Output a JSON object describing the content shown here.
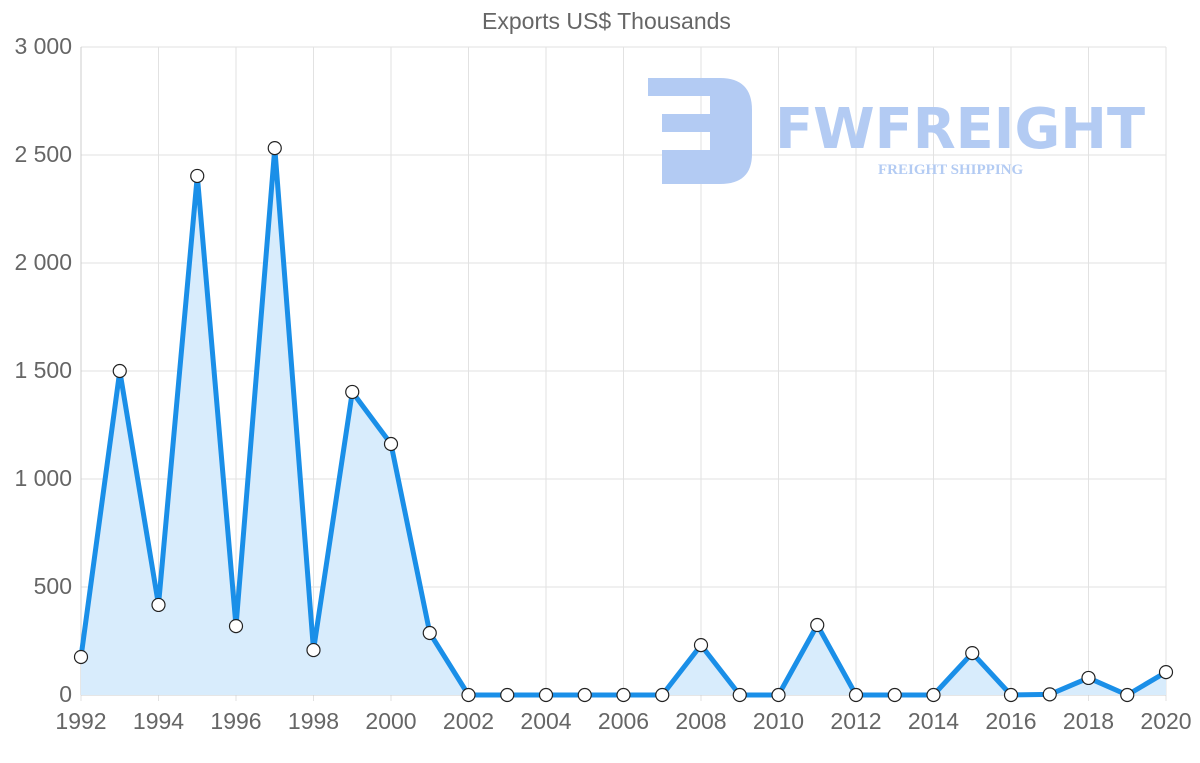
{
  "chart_data": {
    "type": "line",
    "title": "Exports US$ Thousands",
    "xlabel": "",
    "ylabel": "",
    "ylim": [
      0,
      3000
    ],
    "grid": true,
    "legend": "none",
    "fill": true,
    "x": [
      1992,
      1993,
      1994,
      1995,
      1996,
      1997,
      1998,
      1999,
      2000,
      2001,
      2002,
      2003,
      2004,
      2005,
      2006,
      2007,
      2008,
      2009,
      2010,
      2011,
      2012,
      2013,
      2014,
      2015,
      2016,
      2017,
      2018,
      2019,
      2020
    ],
    "series": [
      {
        "name": "Exports US$ Thousands",
        "values": [
          176,
          1500,
          417,
          2403,
          319,
          2532,
          208,
          1403,
          1162,
          287,
          0,
          0,
          0,
          0,
          0,
          0,
          231,
          0,
          0,
          324,
          0,
          0,
          0,
          194,
          0,
          3,
          79,
          0,
          106
        ]
      }
    ],
    "y_ticks": [
      "0",
      "500",
      "1 000",
      "1 500",
      "2 000",
      "2 500",
      "3 000"
    ],
    "x_ticks": [
      "1992",
      "1994",
      "1996",
      "1998",
      "2000",
      "2002",
      "2004",
      "2006",
      "2008",
      "2010",
      "2012",
      "2014",
      "2016",
      "2018",
      "2020"
    ],
    "colors": {
      "line": "#1a8fe8",
      "fill": "#d8ecfc",
      "grid": "#e2e2e2",
      "text": "#666666",
      "watermark": "#b3cbf3"
    }
  },
  "watermark": {
    "brand": "FWFREIGHT",
    "tagline": "FREIGHT SHIPPING"
  }
}
